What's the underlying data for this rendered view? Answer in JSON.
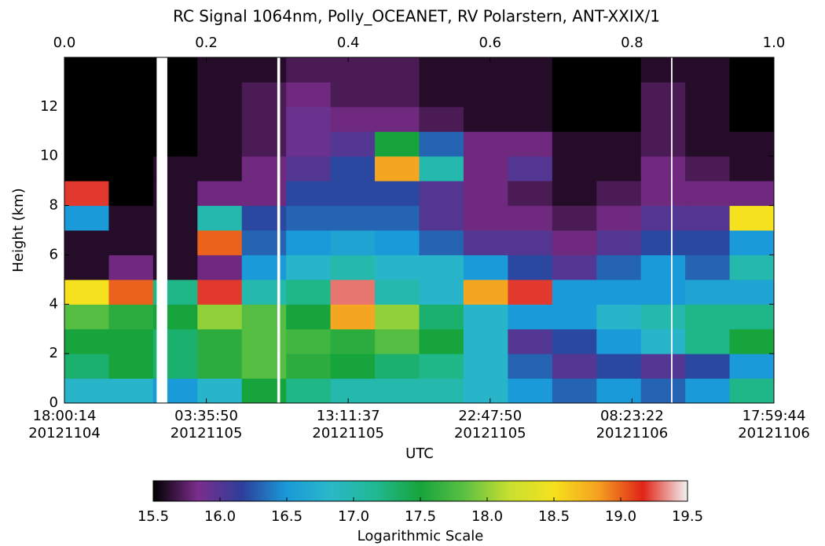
{
  "chart_data": {
    "type": "heatmap",
    "title": "RC Signal 1064nm, Polly_OCEANET, RV Polarstern, ANT-XXIX/1",
    "ylabel": "Height (km)",
    "xlabel": "UTC",
    "xlim": [
      0.0,
      1.0
    ],
    "ylim": [
      0,
      14
    ],
    "xticks": [
      {
        "value": 0.0,
        "label": "0.0"
      },
      0.2,
      0.4,
      0.6,
      0.8,
      {
        "value": 1.0,
        "label": "1.0"
      }
    ],
    "yticks": [
      0,
      2,
      4,
      6,
      8,
      10,
      12
    ],
    "time_ticks": [
      {
        "value": 0.0,
        "label": "18:00:14",
        "sublabel": "20121104"
      },
      {
        "value": 0.2,
        "label": "03:35:50",
        "sublabel": "20121105"
      },
      {
        "value": 0.4,
        "label": "13:11:37",
        "sublabel": "20121105"
      },
      {
        "value": 0.6,
        "label": "22:47:50",
        "sublabel": "20121105"
      },
      {
        "value": 0.8,
        "label": "08:23:22",
        "sublabel": "20121106"
      },
      {
        "value": 1.0,
        "label": "17:59:44",
        "sublabel": "20121106"
      }
    ],
    "z": [
      [
        16.8,
        16.8,
        16.5,
        16.8,
        17.5,
        17.2,
        17.0,
        17.0,
        17.0,
        16.8,
        16.5,
        16.3,
        16.5,
        16.3,
        16.5,
        17.2
      ],
      [
        17.3,
        17.5,
        17.3,
        17.6,
        17.8,
        17.6,
        17.5,
        17.3,
        17.2,
        16.8,
        16.3,
        16.0,
        16.2,
        16.0,
        16.2,
        16.5
      ],
      [
        17.5,
        17.5,
        17.3,
        17.6,
        17.8,
        17.7,
        17.6,
        17.8,
        17.5,
        16.8,
        16.0,
        16.2,
        16.5,
        16.8,
        17.2,
        17.5
      ],
      [
        17.8,
        17.6,
        17.5,
        18.0,
        17.8,
        17.5,
        18.8,
        18.0,
        17.3,
        16.8,
        16.5,
        16.5,
        16.8,
        17.0,
        17.2,
        17.2
      ],
      [
        18.5,
        19.0,
        17.2,
        19.2,
        17.0,
        17.2,
        19.3,
        17.0,
        16.8,
        18.8,
        19.2,
        16.5,
        16.5,
        16.5,
        16.6,
        16.6
      ],
      [
        15.6,
        15.8,
        15.6,
        15.8,
        16.5,
        16.8,
        17.0,
        16.8,
        16.8,
        16.5,
        16.2,
        16.0,
        16.3,
        16.5,
        16.3,
        17.0
      ],
      [
        15.6,
        15.6,
        15.6,
        19.0,
        16.3,
        16.5,
        16.6,
        16.5,
        16.3,
        16.0,
        16.0,
        15.8,
        16.0,
        16.2,
        16.2,
        16.5
      ],
      [
        16.5,
        15.6,
        15.6,
        17.0,
        16.2,
        16.3,
        16.3,
        16.3,
        16.0,
        15.8,
        15.8,
        15.7,
        15.8,
        16.0,
        16.0,
        18.5
      ],
      [
        19.2,
        15.5,
        15.6,
        15.8,
        15.8,
        16.2,
        16.2,
        16.2,
        16.0,
        15.8,
        15.7,
        15.6,
        15.7,
        15.8,
        15.8,
        15.8
      ],
      [
        15.5,
        15.5,
        15.6,
        15.6,
        15.8,
        16.0,
        16.2,
        18.8,
        17.0,
        15.8,
        16.0,
        15.6,
        15.6,
        15.8,
        15.7,
        15.6
      ],
      [
        15.5,
        15.5,
        15.5,
        15.6,
        15.7,
        15.9,
        16.0,
        17.5,
        16.3,
        15.8,
        15.8,
        15.6,
        15.6,
        15.7,
        15.6,
        15.6
      ],
      [
        15.5,
        15.5,
        15.5,
        15.6,
        15.7,
        15.9,
        15.8,
        15.8,
        15.7,
        15.6,
        15.6,
        15.5,
        15.5,
        15.7,
        15.6,
        15.5
      ],
      [
        15.5,
        15.5,
        15.5,
        15.6,
        15.7,
        15.8,
        15.7,
        15.7,
        15.6,
        15.6,
        15.6,
        15.5,
        15.5,
        15.7,
        15.6,
        15.5
      ],
      [
        15.5,
        15.5,
        15.5,
        15.6,
        15.6,
        15.7,
        15.7,
        15.7,
        15.6,
        15.6,
        15.6,
        15.5,
        15.5,
        15.6,
        15.6,
        15.5
      ]
    ],
    "no_data": [
      [
        0.13,
        0.145
      ],
      [
        0.3,
        0.304
      ],
      [
        0.855,
        0.857
      ]
    ],
    "colormap": [
      "#000000",
      "#7b2d8c",
      "#2c3f9a",
      "#1a9ad8",
      "#2ab8c8",
      "#20b890",
      "#17a43c",
      "#5cc043",
      "#c8e030",
      "#f5e11e",
      "#f5a020",
      "#e02418",
      "#f2f2f2"
    ],
    "colorbar": {
      "range": [
        15.5,
        19.5
      ],
      "ticks": [
        15.5,
        16.0,
        16.5,
        17.0,
        17.5,
        18.0,
        18.5,
        19.0,
        19.5
      ],
      "label": "Logarithmic Scale"
    }
  }
}
